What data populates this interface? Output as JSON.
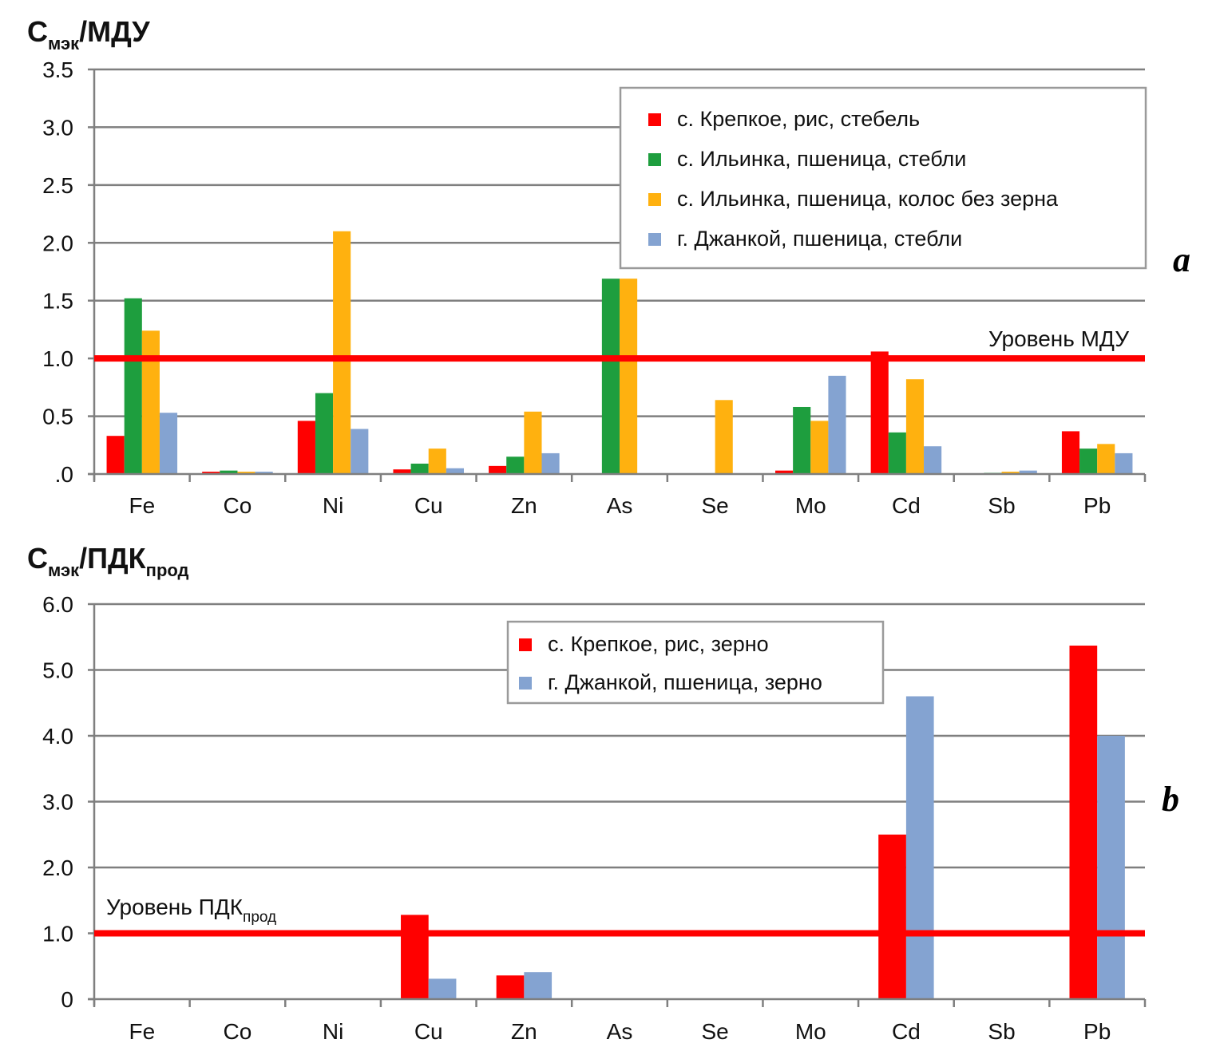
{
  "chart_data": [
    {
      "panel": "a",
      "type": "bar",
      "title": "",
      "ylabel_main": "C",
      "ylabel_sub": "мэк",
      "ylabel_rest": "/МДУ",
      "xlabel": "",
      "ylim": [
        0,
        3.5
      ],
      "yticks": [
        0,
        0.5,
        1.0,
        1.5,
        2.0,
        2.5,
        3.0,
        3.5
      ],
      "ytick_labels": [
        ".0",
        "0.5",
        "1.0",
        "1.5",
        "2.0",
        "2.5",
        "3.0",
        "3.5"
      ],
      "grid": true,
      "legend_position": "top-right",
      "categories": [
        "Fe",
        "Co",
        "Ni",
        "Cu",
        "Zn",
        "As",
        "Se",
        "Mo",
        "Cd",
        "Sb",
        "Pb"
      ],
      "series": [
        {
          "name": "с. Крепкое, рис, стебель",
          "color": "#ff0000",
          "values": [
            0.33,
            0.02,
            0.46,
            0.04,
            0.07,
            0,
            0,
            0.03,
            1.06,
            0,
            0.37
          ]
        },
        {
          "name": "с. Ильинка, пшеница, стебли",
          "color": "#1e9e3e",
          "values": [
            1.52,
            0.03,
            0.7,
            0.09,
            0.15,
            1.69,
            0,
            0.58,
            0.36,
            0.01,
            0.22
          ]
        },
        {
          "name": "с. Ильинка, пшеница, колос без зерна",
          "color": "#ffb10f",
          "values": [
            1.24,
            0.02,
            2.1,
            0.22,
            0.54,
            1.69,
            0.64,
            0.46,
            0.82,
            0.02,
            0.26
          ]
        },
        {
          "name": "г. Джанкой, пшеница, стебли",
          "color": "#84a3d1",
          "values": [
            0.53,
            0.02,
            0.39,
            0.05,
            0.18,
            0,
            0,
            0.85,
            0.24,
            0.03,
            0.18
          ]
        }
      ],
      "reference_line": {
        "value": 1.0,
        "label_main": "Уровень МДУ",
        "label_sub": "",
        "color": "#ff0000"
      },
      "panel_letter": "a"
    },
    {
      "panel": "b",
      "type": "bar",
      "title": "",
      "ylabel_main": "C",
      "ylabel_sub": "мэк",
      "ylabel_rest": "/ПДК",
      "ylabel_sub2": "прод",
      "xlabel": "",
      "ylim": [
        0,
        6.0
      ],
      "yticks": [
        0,
        1,
        2,
        3,
        4,
        5,
        6
      ],
      "ytick_labels": [
        "0",
        "1.0",
        "2.0",
        "3.0",
        "4.0",
        "5.0",
        "6.0"
      ],
      "grid": true,
      "legend_position": "top-center",
      "categories": [
        "Fe",
        "Co",
        "Ni",
        "Cu",
        "Zn",
        "As",
        "Se",
        "Mo",
        "Cd",
        "Sb",
        "Pb"
      ],
      "series": [
        {
          "name": "с. Крепкое, рис, зерно",
          "color": "#ff0000",
          "values": [
            0,
            0,
            0,
            1.28,
            0.36,
            0,
            0,
            0,
            2.5,
            0,
            5.37
          ]
        },
        {
          "name": "г. Джанкой, пшеница, зерно",
          "color": "#84a3d1",
          "values": [
            0,
            0,
            0,
            0.31,
            0.41,
            0,
            0,
            0,
            4.6,
            0,
            4.0
          ]
        }
      ],
      "reference_line": {
        "value": 1.0,
        "label_main": "Уровень ПДК",
        "label_sub": "прод",
        "color": "#ff0000"
      },
      "panel_letter": "b"
    }
  ]
}
